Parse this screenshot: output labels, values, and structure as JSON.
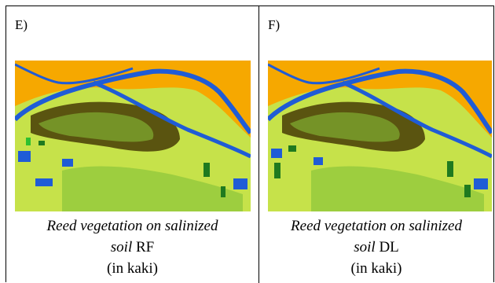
{
  "panels": [
    {
      "label": "E)",
      "caption_italic_1": "Reed vegetation on salinized",
      "caption_italic_2": "soil",
      "caption_method": "RF",
      "caption_note": "(in kaki)"
    },
    {
      "label": "F)",
      "caption_italic_1": "Reed vegetation on salinized",
      "caption_italic_2": "soil",
      "caption_method": "DL",
      "caption_note": "(in kaki)"
    }
  ],
  "colors": {
    "background_class": "#f6a800",
    "water": "#1f5cd6",
    "light_vegetation": "#c6e24a",
    "reed_salinized": "#5a5410",
    "mid_vegetation": "#8cc63a",
    "dark_green": "#1f7a1f"
  }
}
